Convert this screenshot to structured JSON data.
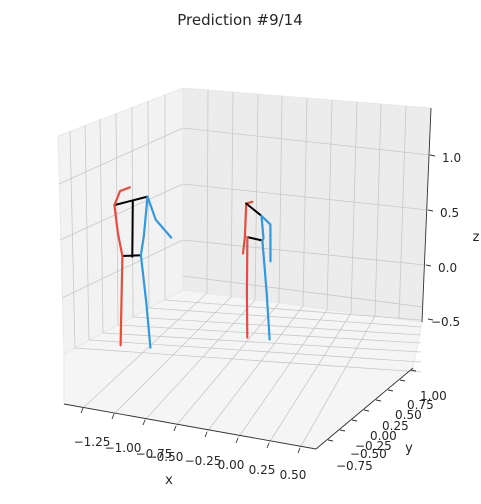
{
  "chart_data": {
    "type": "line",
    "projection": "3d",
    "title": "Prediction #9/14",
    "xlabel": "x",
    "ylabel": "y",
    "zlabel": "z",
    "x_ticks": [
      "−1.25",
      "−1.00",
      "−0.75",
      "−0.50",
      "−0.25",
      "0.00",
      "0.25",
      "0.50"
    ],
    "y_ticks": [
      "−0.75",
      "−0.50",
      "−0.25",
      "0.00",
      "0.25",
      "0.50",
      "0.75",
      "1.00"
    ],
    "z_ticks": [
      "−0.5",
      "0.0",
      "0.5",
      "1.0"
    ],
    "grid": true,
    "colors": {
      "left": "#e74c3c",
      "right": "#3498db",
      "center": "#000000"
    },
    "skeletons": [
      {
        "segments": [
          {
            "side": "center",
            "points": [
              [
                -0.9,
                0.1,
                0.0
              ],
              [
                -0.75,
                0.1,
                0.02
              ]
            ]
          },
          {
            "side": "left",
            "points": [
              [
                -0.9,
                0.1,
                0.0
              ],
              [
                -0.92,
                0.1,
                -0.4
              ],
              [
                -0.94,
                0.1,
                -0.8
              ]
            ]
          },
          {
            "side": "right",
            "points": [
              [
                -0.75,
                0.1,
                0.02
              ],
              [
                -0.72,
                0.1,
                -0.4
              ],
              [
                -0.7,
                0.1,
                -0.8
              ]
            ]
          },
          {
            "side": "center",
            "points": [
              [
                -0.82,
                0.1,
                0.0
              ],
              [
                -0.8,
                0.1,
                0.5
              ]
            ]
          },
          {
            "side": "center",
            "points": [
              [
                -0.95,
                0.1,
                0.45
              ],
              [
                -0.68,
                0.1,
                0.55
              ]
            ]
          },
          {
            "side": "left",
            "points": [
              [
                -0.95,
                0.1,
                0.45
              ],
              [
                -0.9,
                0.1,
                0.58
              ],
              [
                -0.82,
                0.1,
                0.62
              ]
            ]
          },
          {
            "side": "left",
            "points": [
              [
                -0.95,
                0.1,
                0.45
              ],
              [
                -0.93,
                0.1,
                0.2
              ],
              [
                -0.9,
                0.1,
                0.0
              ]
            ]
          },
          {
            "side": "right",
            "points": [
              [
                -0.68,
                0.1,
                0.55
              ],
              [
                -0.62,
                0.1,
                0.35
              ],
              [
                -0.5,
                0.1,
                0.2
              ]
            ]
          },
          {
            "side": "right",
            "points": [
              [
                -0.68,
                0.1,
                0.55
              ],
              [
                -0.72,
                0.1,
                0.2
              ],
              [
                -0.75,
                0.1,
                0.02
              ]
            ]
          }
        ]
      },
      {
        "segments": [
          {
            "side": "center",
            "points": [
              [
                0.05,
                0.3,
                0.2
              ],
              [
                0.17,
                0.3,
                0.18
              ]
            ]
          },
          {
            "side": "left",
            "points": [
              [
                0.05,
                0.3,
                0.2
              ],
              [
                0.03,
                0.3,
                -0.3
              ],
              [
                0.02,
                0.3,
                -0.7
              ]
            ]
          },
          {
            "side": "right",
            "points": [
              [
                0.17,
                0.3,
                0.18
              ],
              [
                0.19,
                0.3,
                -0.3
              ],
              [
                0.2,
                0.3,
                -0.7
              ]
            ]
          },
          {
            "side": "left",
            "points": [
              [
                0.05,
                0.3,
                0.5
              ],
              [
                0.03,
                0.3,
                0.2
              ],
              [
                0.01,
                0.3,
                0.05
              ]
            ]
          },
          {
            "side": "left",
            "points": [
              [
                0.05,
                0.3,
                0.5
              ],
              [
                0.1,
                0.3,
                0.52
              ]
            ]
          },
          {
            "side": "center",
            "points": [
              [
                0.05,
                0.3,
                0.5
              ],
              [
                0.17,
                0.3,
                0.4
              ]
            ]
          },
          {
            "side": "right",
            "points": [
              [
                0.17,
                0.3,
                0.4
              ],
              [
                0.24,
                0.3,
                0.33
              ],
              [
                0.23,
                0.3,
                0.0
              ]
            ]
          },
          {
            "side": "right",
            "points": [
              [
                0.17,
                0.3,
                0.4
              ],
              [
                0.18,
                0.3,
                0.2
              ],
              [
                0.17,
                0.3,
                0.18
              ]
            ]
          }
        ]
      }
    ]
  }
}
